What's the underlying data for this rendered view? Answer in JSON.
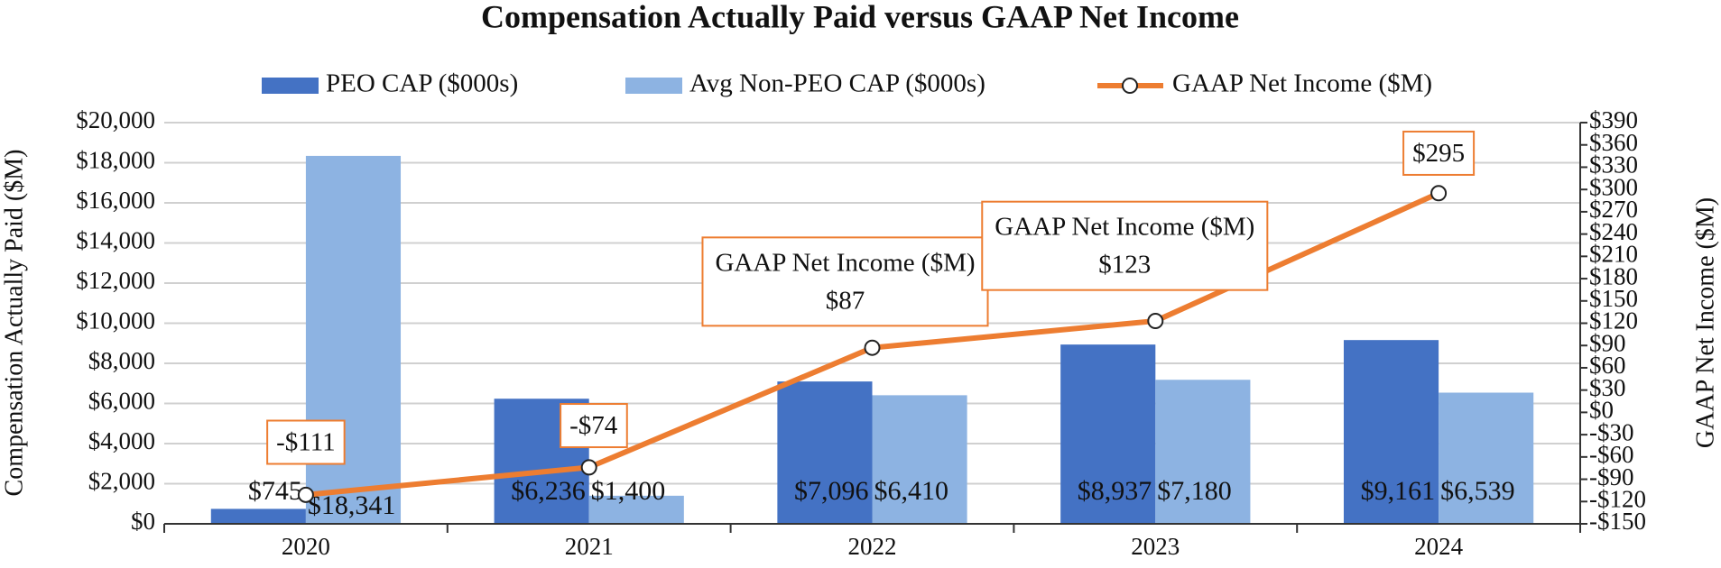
{
  "chart_data": {
    "type": "bar_line",
    "title": "Compensation Actually Paid versus GAAP Net Income",
    "y_label": "Compensation Actually Paid ($M)",
    "y2_label": "GAAP Net Income ($M)",
    "categories": [
      "2020",
      "2021",
      "2022",
      "2023",
      "2024"
    ],
    "series": [
      {
        "name": "PEO CAP ($000s)",
        "color": "#4472c4",
        "type": "bar",
        "values": [
          745,
          6236,
          7096,
          8937,
          9161
        ],
        "value_labels": [
          "$745",
          "$6,236",
          "$7,096",
          "$8,937",
          "$9,161"
        ]
      },
      {
        "name": "Avg Non-PEO CAP ($000s)",
        "color": "#8db3e2",
        "type": "bar",
        "values": [
          18341,
          1400,
          6410,
          7180,
          6539
        ],
        "value_labels": [
          "$18,341",
          "$1,400",
          "$6,410",
          "$7,180",
          "$6,539"
        ]
      },
      {
        "name": "GAAP Net Income ($M)",
        "color": "#ed7d31",
        "type": "line",
        "axis": "y2",
        "values": [
          -111,
          -74,
          87,
          123,
          295
        ],
        "value_labels": [
          "-$111",
          "-$74",
          "$87",
          "$123",
          "$295"
        ]
      }
    ],
    "ylim": [
      0,
      20000
    ],
    "yticks": [
      {
        "value": 0,
        "label": "$0"
      },
      {
        "value": 2000,
        "label": "$2,000"
      },
      {
        "value": 4000,
        "label": "$4,000"
      },
      {
        "value": 6000,
        "label": "$6,000"
      },
      {
        "value": 8000,
        "label": "$8,000"
      },
      {
        "value": 10000,
        "label": "$10,000"
      },
      {
        "value": 12000,
        "label": "$12,000"
      },
      {
        "value": 14000,
        "label": "$14,000"
      },
      {
        "value": 16000,
        "label": "$16,000"
      },
      {
        "value": 18000,
        "label": "$18,000"
      },
      {
        "value": 20000,
        "label": "$20,000"
      }
    ],
    "y2lim": [
      -150,
      390
    ],
    "y2ticks": [
      {
        "value": -150,
        "label": "-$150"
      },
      {
        "value": -120,
        "label": "-$120"
      },
      {
        "value": -90,
        "label": "-$90"
      },
      {
        "value": -60,
        "label": "-$60"
      },
      {
        "value": -30,
        "label": "-$30"
      },
      {
        "value": 0,
        "label": "$0"
      },
      {
        "value": 30,
        "label": "$30"
      },
      {
        "value": 60,
        "label": "$60"
      },
      {
        "value": 90,
        "label": "$90"
      },
      {
        "value": 120,
        "label": "$120"
      },
      {
        "value": 150,
        "label": "$150"
      },
      {
        "value": 180,
        "label": "$180"
      },
      {
        "value": 210,
        "label": "$210"
      },
      {
        "value": 240,
        "label": "$240"
      },
      {
        "value": 270,
        "label": "$270"
      },
      {
        "value": 300,
        "label": "$300"
      },
      {
        "value": 330,
        "label": "$330"
      },
      {
        "value": 360,
        "label": "$360"
      },
      {
        "value": 390,
        "label": "$390"
      }
    ],
    "grid": true,
    "legend": "top"
  }
}
